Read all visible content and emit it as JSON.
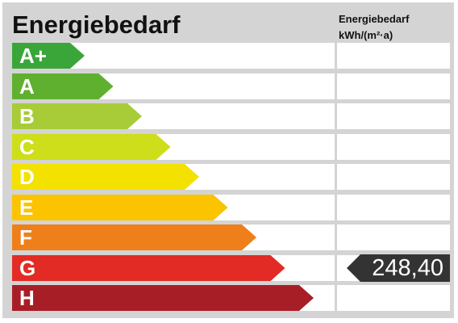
{
  "header": {
    "title": "Energiebedarf",
    "unit_line1": "Energiebedarf",
    "unit_line2": "kWh/(m²·a)"
  },
  "classes": [
    {
      "label": "A+",
      "color": "#3aa63a"
    },
    {
      "label": "A",
      "color": "#5fb02f"
    },
    {
      "label": "B",
      "color": "#a7cc37"
    },
    {
      "label": "C",
      "color": "#cede1a"
    },
    {
      "label": "D",
      "color": "#f3e100"
    },
    {
      "label": "E",
      "color": "#fbc300"
    },
    {
      "label": "F",
      "color": "#ef7f1a"
    },
    {
      "label": "G",
      "color": "#e22b25"
    },
    {
      "label": "H",
      "color": "#a81e27"
    }
  ],
  "indicator": {
    "value": "248,40",
    "class": "G",
    "color": "#333333"
  }
}
